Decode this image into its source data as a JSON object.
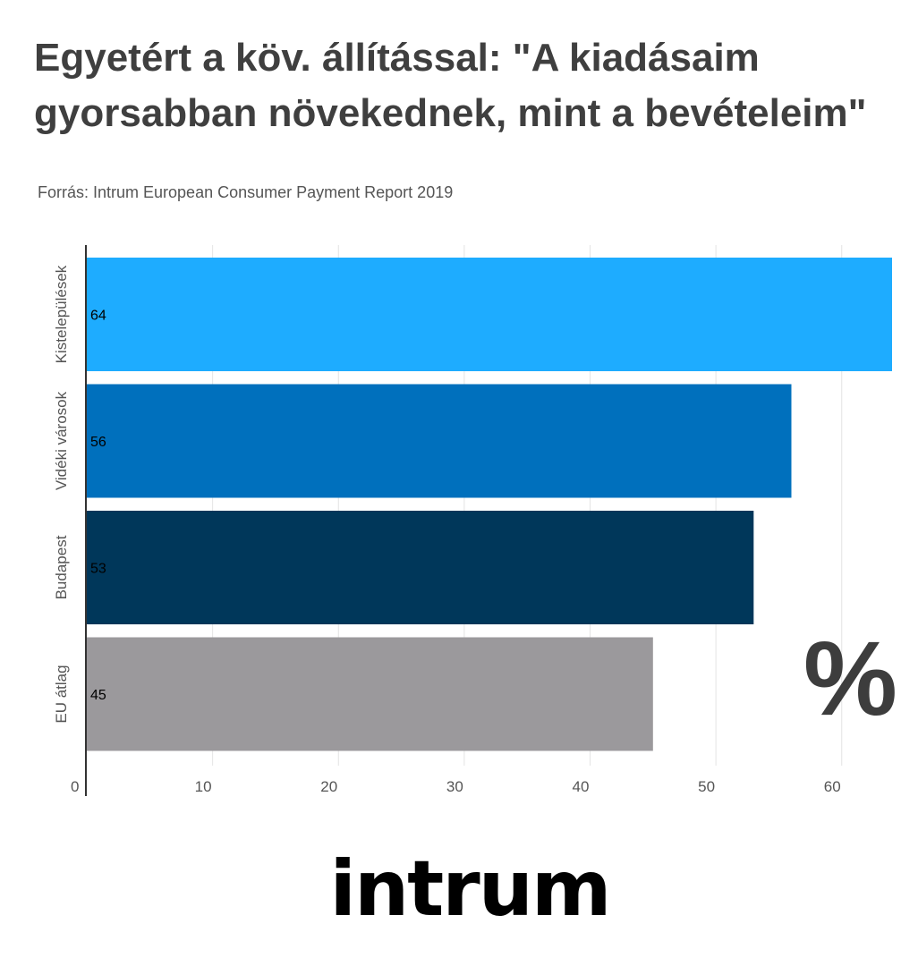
{
  "title": "Egyetért a köv. állítással: \"A kiadásaim gyorsabban növekednek, mint a bevételeim\"",
  "subtitle": "Forrás: Intrum European Consumer Payment Report 2019",
  "unit_symbol": "%",
  "logo_text": "intrum",
  "chart_data": {
    "type": "bar",
    "orientation": "horizontal",
    "categories": [
      "Kistelepülések",
      "Vidéki városok",
      "Budapest",
      "EU átlag"
    ],
    "values": [
      64,
      56,
      53,
      45
    ],
    "colors": [
      "#1eacff",
      "#0070bd",
      "#00375a",
      "#9b999c"
    ],
    "xlim": [
      0,
      64
    ],
    "xticks": [
      0,
      10,
      20,
      30,
      40,
      50,
      60
    ],
    "grid": true
  }
}
